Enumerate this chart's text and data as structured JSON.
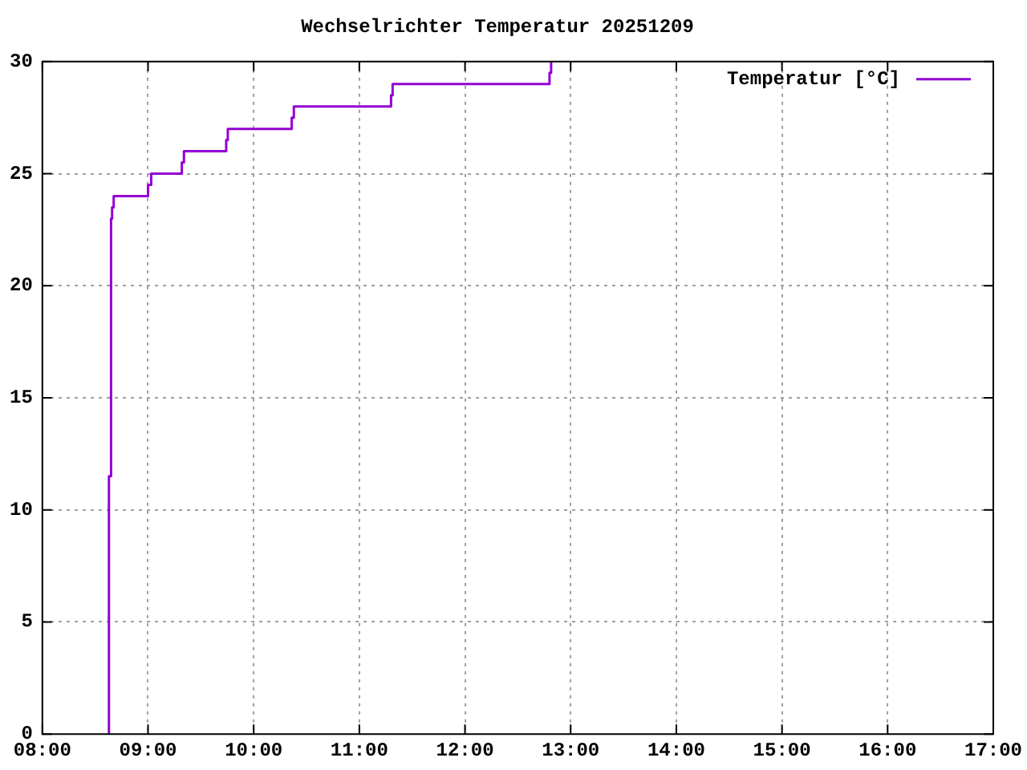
{
  "chart_data": {
    "type": "step",
    "title": "Wechselrichter Temperatur 20251209",
    "x": [
      8.625,
      8.63,
      8.65,
      8.66,
      8.675,
      9.0,
      9.03,
      9.32,
      9.34,
      9.74,
      9.755,
      10.36,
      10.38,
      11.3,
      11.315,
      12.8,
      12.815
    ],
    "series": [
      {
        "name": "Temperatur [°C]",
        "color": "#9400d3",
        "values": [
          0,
          11.5,
          23,
          23.5,
          24,
          24.5,
          25,
          25.5,
          26,
          26.5,
          27,
          27.5,
          28,
          28.5,
          29,
          29.5,
          30
        ]
      }
    ],
    "xlim": [
      8,
      17
    ],
    "xticks": [
      {
        "value": 8,
        "label": "08:00"
      },
      {
        "value": 9,
        "label": "09:00"
      },
      {
        "value": 10,
        "label": "10:00"
      },
      {
        "value": 11,
        "label": "11:00"
      },
      {
        "value": 12,
        "label": "12:00"
      },
      {
        "value": 13,
        "label": "13:00"
      },
      {
        "value": 14,
        "label": "14:00"
      },
      {
        "value": 15,
        "label": "15:00"
      },
      {
        "value": 16,
        "label": "16:00"
      },
      {
        "value": 17,
        "label": "17:00"
      }
    ],
    "ylim": [
      0,
      30
    ],
    "yticks": [
      0,
      5,
      10,
      15,
      20,
      25,
      30
    ],
    "grid": true,
    "legend": "top right",
    "marker": "none",
    "line_style": "solid"
  }
}
